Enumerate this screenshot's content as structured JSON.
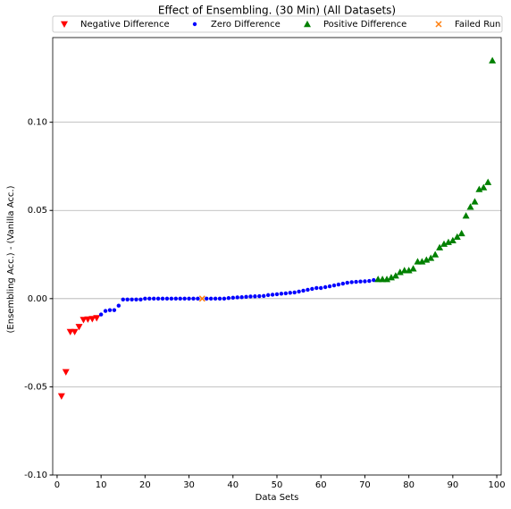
{
  "chart_data": {
    "type": "scatter",
    "title": "Effect of Ensembling. (30 Min) (All Datasets)",
    "xlabel": "Data Sets",
    "ylabel": "(Ensembling Acc.) - (Vanilla Acc.)",
    "xlim": [
      -1,
      101
    ],
    "ylim": [
      -0.1,
      0.148
    ],
    "xticks": [
      0,
      10,
      20,
      30,
      40,
      50,
      60,
      70,
      80,
      90,
      100
    ],
    "yticks": [
      {
        "value": -0.1,
        "label": "-0.10"
      },
      {
        "value": -0.05,
        "label": "-0.05"
      },
      {
        "value": 0,
        "label": "0.00"
      },
      {
        "value": 0.05,
        "label": "0.05"
      },
      {
        "value": 0.1,
        "label": "0.10"
      }
    ],
    "grid": "y",
    "legend": "top",
    "series": [
      {
        "name": "Negative Difference",
        "color": "#ff0000",
        "marker": "v",
        "x": [
          1,
          2,
          3,
          4,
          5,
          6,
          7,
          8,
          9
        ],
        "values": [
          -0.0553,
          -0.0416,
          -0.0188,
          -0.0188,
          -0.016,
          -0.012,
          -0.0117,
          -0.0115,
          -0.011
        ]
      },
      {
        "name": "Zero Difference",
        "color": "#0000ff",
        "marker": "o",
        "x": [
          10,
          11,
          12,
          13,
          14,
          15,
          16,
          17,
          18,
          19,
          20,
          21,
          22,
          23,
          24,
          25,
          26,
          27,
          28,
          29,
          30,
          31,
          32,
          34,
          35,
          36,
          37,
          38,
          39,
          40,
          41,
          42,
          43,
          44,
          45,
          46,
          47,
          48,
          49,
          50,
          51,
          52,
          53,
          54,
          55,
          56,
          57,
          58,
          59,
          60,
          61,
          62,
          63,
          64,
          65,
          66,
          67,
          68,
          69,
          70,
          71,
          72
        ],
        "values": [
          -0.009,
          -0.007,
          -0.0065,
          -0.0065,
          -0.004,
          -0.0005,
          -0.0005,
          -0.0005,
          -0.0005,
          -0.0005,
          0,
          0,
          0,
          0,
          0,
          0,
          0,
          0,
          0,
          0,
          0,
          0,
          0,
          0,
          0,
          0,
          0,
          0,
          0.0003,
          0.0005,
          0.0007,
          0.0008,
          0.001,
          0.0012,
          0.0013,
          0.0014,
          0.0015,
          0.002,
          0.0022,
          0.0025,
          0.0028,
          0.003,
          0.0033,
          0.0035,
          0.004,
          0.0045,
          0.005,
          0.0055,
          0.006,
          0.006,
          0.0065,
          0.007,
          0.0075,
          0.008,
          0.0085,
          0.009,
          0.0093,
          0.0095,
          0.0097,
          0.0098,
          0.01,
          0.0105
        ]
      },
      {
        "name": "Positive Difference",
        "color": "#008000",
        "marker": "^",
        "x": [
          73,
          74,
          75,
          76,
          77,
          78,
          79,
          80,
          81,
          82,
          83,
          84,
          85,
          86,
          87,
          88,
          89,
          90,
          91,
          92,
          93,
          94,
          95,
          96,
          97,
          98,
          99
        ],
        "values": [
          0.011,
          0.011,
          0.011,
          0.012,
          0.013,
          0.015,
          0.016,
          0.016,
          0.017,
          0.021,
          0.021,
          0.022,
          0.023,
          0.025,
          0.029,
          0.031,
          0.032,
          0.033,
          0.035,
          0.037,
          0.047,
          0.052,
          0.055,
          0.062,
          0.063,
          0.066,
          0.135
        ]
      },
      {
        "name": "Failed Run",
        "color": "#ff7f0e",
        "marker": "x",
        "x": [
          33
        ],
        "values": [
          0
        ]
      }
    ]
  }
}
